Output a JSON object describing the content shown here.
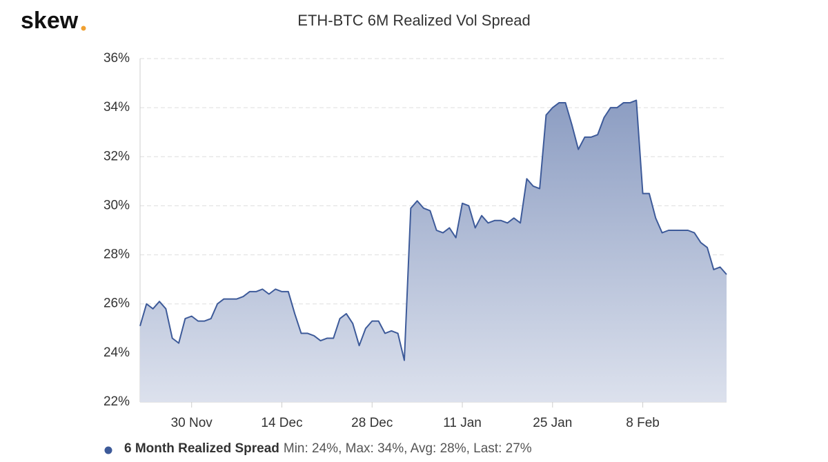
{
  "logo": "skew",
  "chart_data": {
    "type": "area",
    "title": "ETH-BTC 6M Realized Vol Spread",
    "categories": [
      null,
      null,
      null,
      null,
      null,
      null,
      null,
      null,
      "30 Nov",
      null,
      null,
      null,
      null,
      null,
      null,
      null,
      null,
      null,
      null,
      null,
      null,
      null,
      "14 Dec",
      null,
      null,
      null,
      null,
      null,
      null,
      null,
      null,
      null,
      null,
      null,
      null,
      null,
      "28 Dec",
      null,
      null,
      null,
      null,
      null,
      null,
      null,
      null,
      null,
      null,
      null,
      null,
      null,
      "11 Jan",
      null,
      null,
      null,
      null,
      null,
      null,
      null,
      null,
      null,
      null,
      null,
      null,
      null,
      "25 Jan",
      null,
      null,
      null,
      null,
      null,
      null,
      null,
      null,
      null,
      null,
      null,
      null,
      null,
      "8 Feb",
      null,
      null,
      null,
      null,
      null,
      null,
      null,
      null,
      null,
      null,
      null,
      null,
      null
    ],
    "series": [
      {
        "name": "6 Month Realized Spread",
        "color": "#3d5a99",
        "stats": "Min: 24%, Max: 34%, Avg: 28%, Last: 27%",
        "values": [
          25.1,
          26.0,
          25.8,
          26.1,
          25.8,
          24.6,
          24.4,
          25.4,
          25.5,
          25.3,
          25.3,
          25.4,
          26.0,
          26.2,
          26.2,
          26.2,
          26.3,
          26.5,
          26.5,
          26.6,
          26.4,
          26.6,
          26.5,
          26.5,
          25.6,
          24.8,
          24.8,
          24.7,
          24.5,
          24.6,
          24.6,
          25.4,
          25.6,
          25.2,
          24.3,
          25.0,
          25.3,
          25.3,
          24.8,
          24.9,
          24.8,
          23.7,
          29.9,
          30.2,
          29.9,
          29.8,
          29.0,
          28.9,
          29.1,
          28.7,
          30.1,
          30.0,
          29.1,
          29.6,
          29.3,
          29.4,
          29.4,
          29.3,
          29.5,
          29.3,
          31.1,
          30.8,
          30.7,
          33.7,
          34.0,
          34.2,
          34.2,
          33.3,
          32.3,
          32.8,
          32.8,
          32.9,
          33.6,
          34.0,
          34.0,
          34.2,
          34.2,
          34.3,
          30.5,
          30.5,
          29.5,
          28.9,
          29.0,
          29.0,
          29.0,
          29.0,
          28.9,
          28.5,
          28.3,
          27.4,
          27.5,
          27.2
        ]
      }
    ],
    "ylim": [
      22,
      36
    ],
    "yticks": [
      {
        "value": 22,
        "label": "22%"
      },
      {
        "value": 24,
        "label": "24%"
      },
      {
        "value": 26,
        "label": "26%"
      },
      {
        "value": 28,
        "label": "28%"
      },
      {
        "value": 30,
        "label": "30%"
      },
      {
        "value": 32,
        "label": "32%"
      },
      {
        "value": 34,
        "label": "34%"
      },
      {
        "value": 36,
        "label": "36%"
      }
    ],
    "grid": true
  }
}
